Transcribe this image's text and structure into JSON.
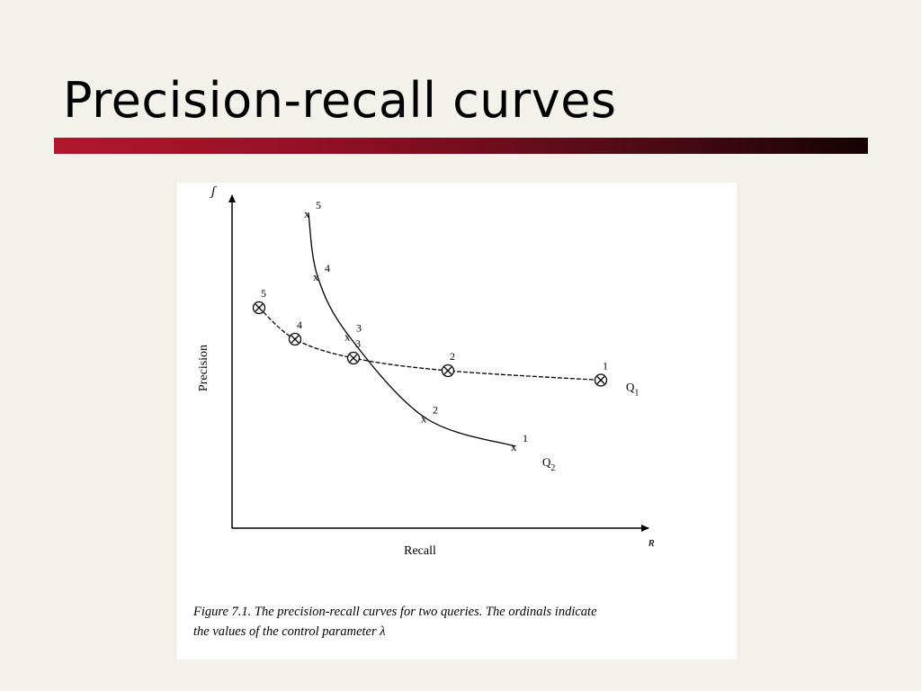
{
  "slide": {
    "title": "Precision-recall curves"
  },
  "figure": {
    "ylabel": "Precision",
    "xlabel": "Recall",
    "y_axis_marker": "ʃ",
    "x_axis_marker": "ʀ",
    "caption_line1": "Figure 7.1.  The precision-recall curves for two queries.  The ordinals indicate",
    "caption_line2": "the values of the control parameter λ",
    "colors": {
      "axis": "#000000",
      "curve": "#000000",
      "title_bar_start": "#b0182e",
      "title_bar_end": "#140304"
    }
  },
  "chart_data": {
    "type": "line",
    "xlabel": "Recall",
    "ylabel": "Precision",
    "series": [
      {
        "name": "Q1",
        "name_main": "Q",
        "name_sub": "1",
        "marker": "circled-x",
        "curve_style": "dashed-solid",
        "points": [
          {
            "label": "5",
            "x": 0.06,
            "y": 0.7
          },
          {
            "label": "4",
            "x": 0.14,
            "y": 0.6
          },
          {
            "label": "3",
            "x": 0.27,
            "y": 0.54
          },
          {
            "label": "2",
            "x": 0.48,
            "y": 0.5
          },
          {
            "label": "1",
            "x": 0.82,
            "y": 0.47
          }
        ]
      },
      {
        "name": "Q2",
        "name_main": "Q",
        "name_sub": "2",
        "marker": "x",
        "curve_style": "solid",
        "points": [
          {
            "label": "5",
            "x": 0.17,
            "y": 1.0
          },
          {
            "label": "4",
            "x": 0.19,
            "y": 0.8
          },
          {
            "label": "3",
            "x": 0.26,
            "y": 0.61
          },
          {
            "label": "2",
            "x": 0.43,
            "y": 0.35
          },
          {
            "label": "1",
            "x": 0.63,
            "y": 0.26
          }
        ]
      }
    ],
    "xlim": [
      0,
      1
    ],
    "ylim": [
      0,
      1
    ]
  }
}
